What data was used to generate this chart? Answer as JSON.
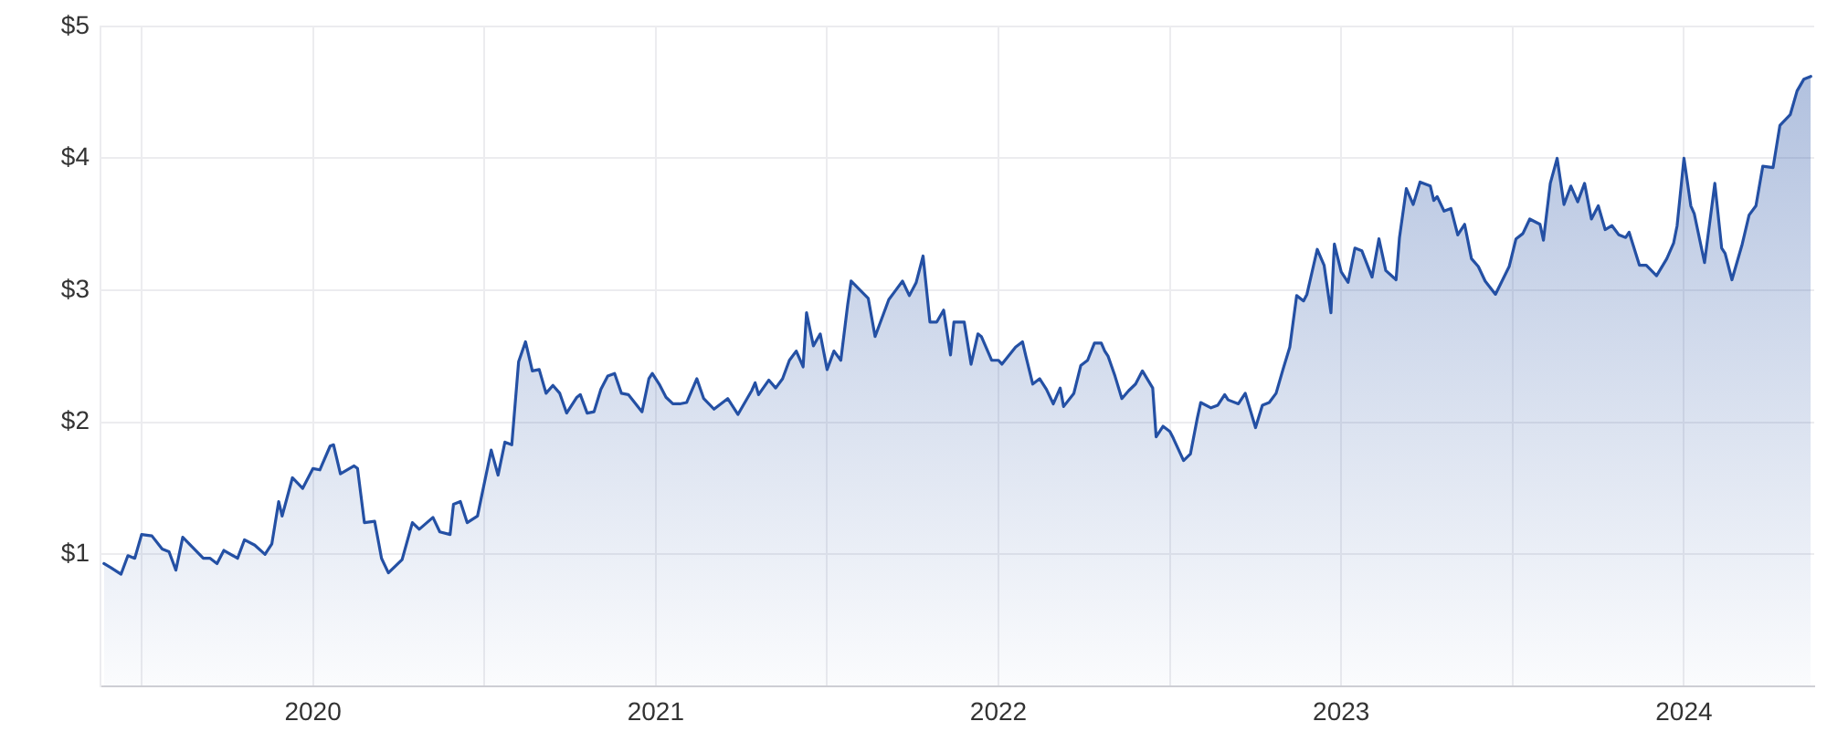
{
  "chart_data": {
    "type": "area",
    "xlim": [
      2019.38,
      2024.38
    ],
    "xticks": [
      {
        "value": 2019.5,
        "label": null
      },
      {
        "value": 2020,
        "label": "2020"
      },
      {
        "value": 2020.5,
        "label": null
      },
      {
        "value": 2021,
        "label": "2021"
      },
      {
        "value": 2021.5,
        "label": null
      },
      {
        "value": 2022,
        "label": "2022"
      },
      {
        "value": 2022.5,
        "label": null
      },
      {
        "value": 2023,
        "label": "2023"
      },
      {
        "value": 2023.5,
        "label": null
      },
      {
        "value": 2024,
        "label": "2024"
      }
    ],
    "ylim": [
      0,
      5
    ],
    "yticks": [
      {
        "value": 1,
        "label": "$1"
      },
      {
        "value": 2,
        "label": "$2"
      },
      {
        "value": 3,
        "label": "$3"
      },
      {
        "value": 4,
        "label": "$4"
      },
      {
        "value": 5,
        "label": "$5"
      }
    ],
    "grid": true,
    "legend": false,
    "marker": "none",
    "line_style": "solid",
    "series": [
      {
        "color": "#2450a4",
        "x": [
          2019.39,
          2019.41,
          2019.44,
          2019.46,
          2019.48,
          2019.5,
          2019.53,
          2019.56,
          2019.58,
          2019.6,
          2019.62,
          2019.68,
          2019.7,
          2019.72,
          2019.74,
          2019.78,
          2019.8,
          2019.83,
          2019.86,
          2019.88,
          2019.9,
          2019.91,
          2019.94,
          2019.97,
          2020.0,
          2020.02,
          2020.05,
          2020.06,
          2020.08,
          2020.12,
          2020.13,
          2020.15,
          2020.18,
          2020.2,
          2020.22,
          2020.26,
          2020.29,
          2020.31,
          2020.35,
          2020.37,
          2020.4,
          2020.41,
          2020.43,
          2020.45,
          2020.48,
          2020.52,
          2020.54,
          2020.56,
          2020.58,
          2020.6,
          2020.62,
          2020.64,
          2020.66,
          2020.68,
          2020.7,
          2020.72,
          2020.74,
          2020.77,
          2020.78,
          2020.8,
          2020.82,
          2020.84,
          2020.86,
          2020.88,
          2020.9,
          2020.92,
          2020.96,
          2020.98,
          2020.99,
          2021.01,
          2021.03,
          2021.05,
          2021.07,
          2021.09,
          2021.12,
          2021.14,
          2021.17,
          2021.21,
          2021.24,
          2021.28,
          2021.29,
          2021.3,
          2021.33,
          2021.35,
          2021.37,
          2021.39,
          2021.41,
          2021.43,
          2021.44,
          2021.46,
          2021.48,
          2021.5,
          2021.52,
          2021.54,
          2021.56,
          2021.57,
          2021.62,
          2021.64,
          2021.68,
          2021.7,
          2021.72,
          2021.74,
          2021.76,
          2021.78,
          2021.8,
          2021.82,
          2021.84,
          2021.86,
          2021.87,
          2021.9,
          2021.92,
          2021.94,
          2021.95,
          2021.98,
          2022.0,
          2022.01,
          2022.05,
          2022.07,
          2022.08,
          2022.1,
          2022.12,
          2022.14,
          2022.16,
          2022.18,
          2022.19,
          2022.22,
          2022.24,
          2022.26,
          2022.28,
          2022.3,
          2022.31,
          2022.32,
          2022.34,
          2022.36,
          2022.38,
          2022.4,
          2022.42,
          2022.45,
          2022.46,
          2022.48,
          2022.5,
          2022.51,
          2022.54,
          2022.56,
          2022.58,
          2022.59,
          2022.62,
          2022.64,
          2022.66,
          2022.67,
          2022.7,
          2022.72,
          2022.75,
          2022.77,
          2022.79,
          2022.81,
          2022.83,
          2022.85,
          2022.87,
          2022.89,
          2022.9,
          2022.93,
          2022.95,
          2022.97,
          2022.98,
          2023.0,
          2023.02,
          2023.04,
          2023.06,
          2023.09,
          2023.11,
          2023.13,
          2023.16,
          2023.17,
          2023.19,
          2023.21,
          2023.23,
          2023.26,
          2023.27,
          2023.28,
          2023.3,
          2023.32,
          2023.34,
          2023.36,
          2023.38,
          2023.4,
          2023.42,
          2023.45,
          2023.49,
          2023.51,
          2023.53,
          2023.55,
          2023.58,
          2023.59,
          2023.61,
          2023.63,
          2023.65,
          2023.67,
          2023.69,
          2023.71,
          2023.73,
          2023.75,
          2023.77,
          2023.79,
          2023.81,
          2023.83,
          2023.84,
          2023.87,
          2023.89,
          2023.92,
          2023.95,
          2023.97,
          2023.98,
          2024.0,
          2024.02,
          2024.03,
          2024.06,
          2024.09,
          2024.11,
          2024.12,
          2024.14,
          2024.17,
          2024.19,
          2024.21,
          2024.23,
          2024.26,
          2024.28,
          2024.31,
          2024.33,
          2024.35,
          2024.37
        ],
        "values": [
          0.93,
          0.9,
          0.85,
          0.99,
          0.97,
          1.15,
          1.14,
          1.04,
          1.02,
          0.88,
          1.13,
          0.97,
          0.97,
          0.93,
          1.03,
          0.97,
          1.11,
          1.07,
          1.0,
          1.08,
          1.4,
          1.29,
          1.58,
          1.5,
          1.65,
          1.64,
          1.82,
          1.83,
          1.61,
          1.67,
          1.65,
          1.24,
          1.25,
          0.97,
          0.86,
          0.96,
          1.24,
          1.19,
          1.28,
          1.17,
          1.15,
          1.38,
          1.4,
          1.24,
          1.29,
          1.79,
          1.6,
          1.85,
          1.83,
          2.46,
          2.61,
          2.39,
          2.4,
          2.22,
          2.28,
          2.22,
          2.07,
          2.19,
          2.21,
          2.07,
          2.08,
          2.25,
          2.35,
          2.37,
          2.22,
          2.21,
          2.08,
          2.33,
          2.37,
          2.29,
          2.19,
          2.14,
          2.14,
          2.15,
          2.33,
          2.18,
          2.1,
          2.18,
          2.06,
          2.24,
          2.3,
          2.21,
          2.32,
          2.26,
          2.33,
          2.47,
          2.54,
          2.42,
          2.83,
          2.58,
          2.67,
          2.4,
          2.54,
          2.47,
          2.89,
          3.07,
          2.94,
          2.65,
          2.93,
          3.0,
          3.07,
          2.96,
          3.06,
          3.26,
          2.76,
          2.76,
          2.85,
          2.51,
          2.76,
          2.76,
          2.44,
          2.67,
          2.65,
          2.47,
          2.47,
          2.44,
          2.57,
          2.61,
          2.5,
          2.29,
          2.33,
          2.25,
          2.14,
          2.26,
          2.12,
          2.22,
          2.43,
          2.47,
          2.6,
          2.6,
          2.54,
          2.5,
          2.35,
          2.18,
          2.24,
          2.29,
          2.39,
          2.26,
          1.89,
          1.97,
          1.93,
          1.88,
          1.71,
          1.76,
          2.03,
          2.15,
          2.11,
          2.13,
          2.21,
          2.17,
          2.14,
          2.22,
          1.96,
          2.13,
          2.15,
          2.22,
          2.4,
          2.57,
          2.96,
          2.92,
          2.97,
          3.31,
          3.19,
          2.83,
          3.35,
          3.14,
          3.06,
          3.32,
          3.3,
          3.1,
          3.39,
          3.15,
          3.08,
          3.4,
          3.77,
          3.65,
          3.82,
          3.79,
          3.68,
          3.71,
          3.6,
          3.62,
          3.42,
          3.5,
          3.24,
          3.18,
          3.07,
          2.97,
          3.18,
          3.39,
          3.43,
          3.54,
          3.5,
          3.38,
          3.81,
          4.0,
          3.65,
          3.79,
          3.67,
          3.81,
          3.54,
          3.64,
          3.46,
          3.49,
          3.42,
          3.4,
          3.44,
          3.19,
          3.19,
          3.11,
          3.24,
          3.36,
          3.49,
          4.0,
          3.64,
          3.58,
          3.21,
          3.81,
          3.32,
          3.28,
          3.08,
          3.35,
          3.57,
          3.64,
          3.94,
          3.93,
          4.25,
          4.33,
          4.51,
          4.6,
          4.62
        ]
      }
    ]
  }
}
